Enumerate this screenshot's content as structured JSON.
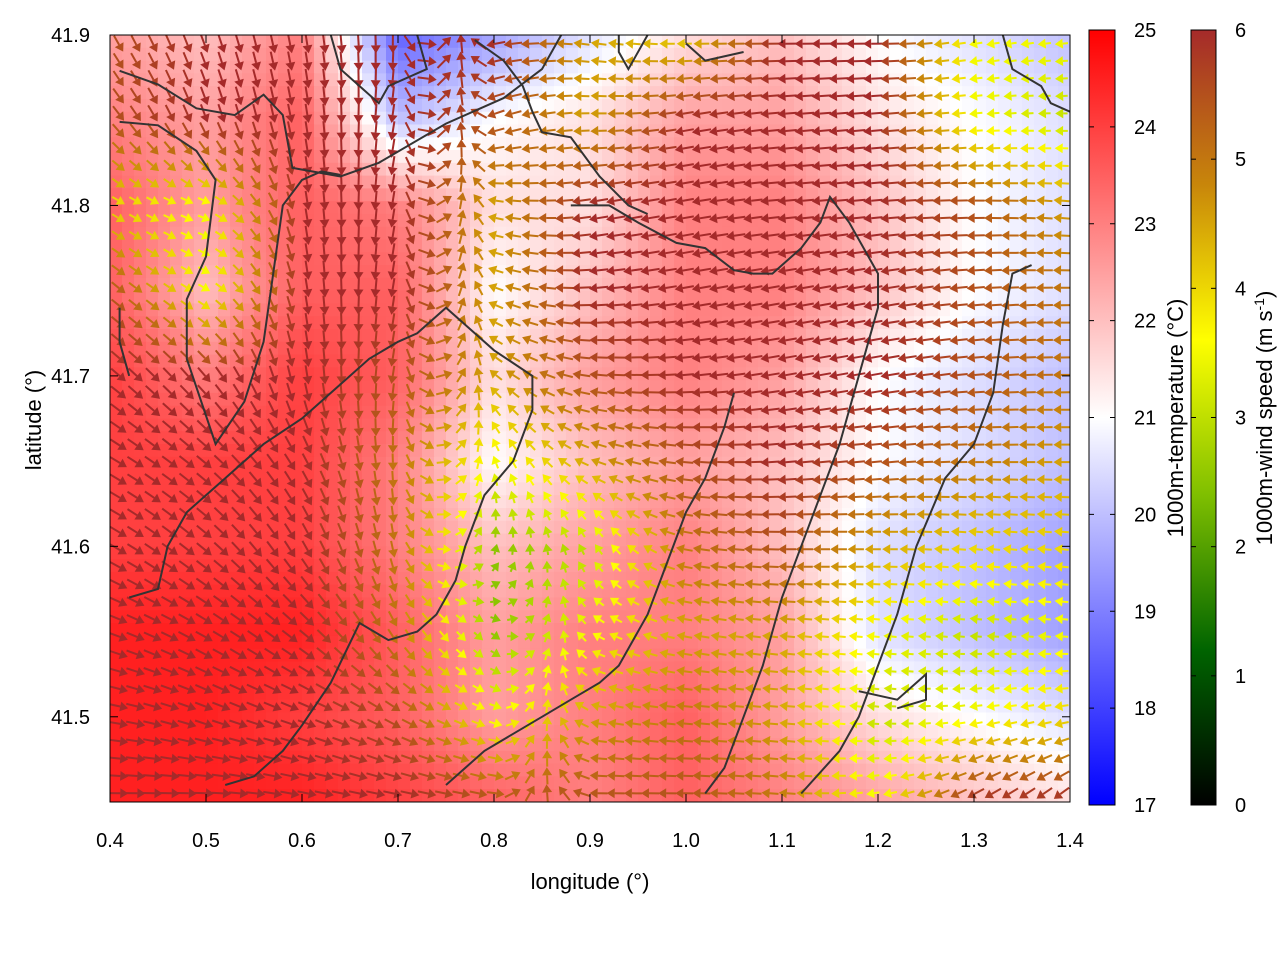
{
  "chart_data": {
    "type": "heatmap",
    "title": "",
    "xlabel": "longitude (°)",
    "ylabel": "latitude (°)",
    "xlim": [
      0.4,
      1.4
    ],
    "ylim": [
      41.45,
      41.9
    ],
    "xticks": [
      0.4,
      0.5,
      0.6,
      0.7,
      0.8,
      0.9,
      1.0,
      1.1,
      1.2,
      1.3,
      1.4
    ],
    "xtick_labels": [
      "0.4",
      "0.5",
      "0.6",
      "0.7",
      "0.8",
      "0.9",
      "1.0",
      "1.1",
      "1.2",
      "1.3",
      "1.4"
    ],
    "yticks": [
      41.5,
      41.6,
      41.7,
      41.8,
      41.9
    ],
    "ytick_labels": [
      "41.5",
      "41.6",
      "41.7",
      "41.8",
      "41.9"
    ],
    "colorbars": [
      {
        "label": "1000m-temperature (°C)",
        "range": [
          17,
          25
        ],
        "ticks": [
          17,
          18,
          19,
          20,
          21,
          22,
          23,
          24,
          25
        ],
        "tick_labels": [
          "17",
          "18",
          "19",
          "20",
          "21",
          "22",
          "23",
          "24",
          "25"
        ],
        "colors": [
          "#0000ff",
          "#ffffff",
          "#ff0000"
        ]
      },
      {
        "label_main": "1000m-wind speed (m s",
        "label_sup": "-1",
        "label_end": ")",
        "range": [
          0,
          6
        ],
        "ticks": [
          0,
          1,
          2,
          3,
          4,
          5,
          6
        ],
        "tick_labels": [
          "0",
          "1",
          "2",
          "3",
          "4",
          "5",
          "6"
        ],
        "colors": [
          "#000000",
          "#006400",
          "#7fbf00",
          "#ffff00",
          "#c8860a",
          "#a52a2a"
        ]
      }
    ],
    "temperature_field": {
      "description": "gridded 1000m temperature, lon 0.4-1.4 x lat 41.45-41.9",
      "lon": [
        0.4,
        0.5,
        0.6,
        0.7,
        0.8,
        0.9,
        1.0,
        1.1,
        1.2,
        1.3,
        1.4
      ],
      "lat": [
        41.9,
        41.85,
        41.8,
        41.75,
        41.7,
        41.65,
        41.6,
        41.55,
        41.5,
        41.45
      ],
      "values": [
        [
          22.5,
          22.0,
          23.0,
          18.5,
          19.5,
          20.5,
          21.5,
          22.0,
          21.0,
          20.5,
          20.0
        ],
        [
          23.0,
          22.5,
          23.5,
          20.0,
          21.0,
          21.5,
          22.5,
          22.5,
          21.5,
          21.0,
          20.5
        ],
        [
          23.5,
          22.5,
          23.5,
          23.0,
          21.5,
          21.5,
          23.0,
          23.0,
          22.0,
          21.0,
          20.5
        ],
        [
          23.5,
          22.0,
          23.5,
          23.5,
          21.0,
          22.0,
          23.0,
          23.0,
          22.0,
          21.0,
          20.5
        ],
        [
          24.0,
          23.0,
          24.0,
          23.5,
          21.5,
          22.5,
          23.0,
          22.5,
          21.0,
          20.5,
          20.0
        ],
        [
          24.0,
          24.0,
          24.0,
          23.0,
          21.0,
          22.0,
          22.5,
          22.0,
          21.0,
          20.5,
          20.0
        ],
        [
          24.0,
          24.0,
          24.0,
          23.0,
          22.0,
          22.5,
          23.0,
          22.0,
          20.5,
          20.0,
          19.5
        ],
        [
          24.5,
          24.5,
          24.5,
          23.5,
          22.5,
          23.0,
          23.0,
          22.5,
          20.5,
          20.0,
          19.5
        ],
        [
          24.5,
          24.5,
          24.0,
          23.5,
          22.5,
          23.0,
          23.5,
          22.5,
          21.5,
          21.0,
          20.5
        ],
        [
          24.5,
          24.5,
          24.5,
          24.0,
          23.5,
          23.0,
          23.5,
          23.0,
          22.5,
          22.0,
          21.5
        ]
      ]
    },
    "wind_field": {
      "description": "1000m wind vectors; speed in m s-1, direction in degrees (math, 0=east)",
      "lon": [
        0.4,
        0.5,
        0.6,
        0.7,
        0.8,
        0.9,
        1.0,
        1.1,
        1.2,
        1.3,
        1.4
      ],
      "lat": [
        41.9,
        41.85,
        41.8,
        41.75,
        41.7,
        41.65,
        41.6,
        41.55,
        41.5,
        41.45
      ],
      "speed": [
        [
          5.5,
          6.0,
          6.0,
          6.0,
          6.0,
          4.5,
          4.0,
          6.0,
          6.0,
          3.5,
          3.5
        ],
        [
          5.5,
          6.0,
          6.0,
          6.0,
          5.5,
          4.5,
          6.0,
          6.0,
          6.0,
          3.5,
          3.0
        ],
        [
          4.0,
          3.5,
          6.0,
          6.0,
          4.5,
          6.0,
          6.0,
          6.0,
          6.0,
          5.5,
          4.5
        ],
        [
          5.5,
          3.5,
          6.0,
          6.0,
          4.5,
          6.0,
          6.0,
          6.0,
          6.0,
          5.5,
          5.0
        ],
        [
          6.0,
          6.0,
          6.0,
          5.5,
          4.5,
          5.5,
          6.0,
          6.0,
          6.0,
          5.5,
          5.0
        ],
        [
          6.0,
          6.0,
          6.0,
          5.0,
          3.5,
          4.5,
          5.5,
          6.0,
          5.5,
          5.0,
          4.5
        ],
        [
          6.0,
          6.0,
          6.0,
          5.0,
          2.5,
          3.0,
          5.0,
          5.5,
          4.5,
          4.0,
          4.0
        ],
        [
          6.0,
          6.0,
          6.0,
          5.0,
          2.5,
          3.5,
          4.5,
          4.5,
          3.5,
          3.0,
          3.5
        ],
        [
          6.0,
          6.0,
          6.0,
          5.5,
          3.5,
          4.5,
          5.0,
          4.5,
          3.0,
          3.5,
          4.0
        ],
        [
          6.0,
          6.0,
          6.0,
          6.0,
          5.5,
          5.5,
          5.5,
          5.0,
          3.5,
          6.0,
          6.0
        ]
      ],
      "direction_deg": [
        [
          -60,
          -70,
          -80,
          -90,
          190,
          170,
          180,
          180,
          180,
          190,
          185
        ],
        [
          -50,
          -70,
          -80,
          -100,
          200,
          180,
          190,
          185,
          185,
          185,
          180
        ],
        [
          -30,
          -20,
          -80,
          -100,
          170,
          190,
          190,
          185,
          185,
          180,
          175
        ],
        [
          -40,
          -30,
          -80,
          -100,
          160,
          185,
          190,
          190,
          190,
          185,
          180
        ],
        [
          -40,
          -50,
          -80,
          -100,
          140,
          175,
          185,
          190,
          190,
          185,
          180
        ],
        [
          -30,
          -40,
          -60,
          -90,
          110,
          160,
          175,
          185,
          185,
          180,
          180
        ],
        [
          -30,
          -40,
          -60,
          -80,
          80,
          120,
          170,
          180,
          180,
          175,
          175
        ],
        [
          -20,
          -30,
          -40,
          -60,
          -40,
          150,
          170,
          175,
          175,
          175,
          175
        ],
        [
          -10,
          -20,
          -20,
          -30,
          -20,
          170,
          175,
          175,
          175,
          190,
          190
        ],
        [
          0,
          0,
          -10,
          -10,
          -10,
          180,
          180,
          175,
          190,
          210,
          220
        ]
      ]
    },
    "contours": {
      "description": "dark grey contour lines, lon/lat vertices",
      "color": "#333333",
      "lines": [
        [
          [
            0.41,
            41.879
          ],
          [
            0.45,
            41.871
          ],
          [
            0.49,
            41.857
          ],
          [
            0.53,
            41.853
          ],
          [
            0.56,
            41.865
          ],
          [
            0.58,
            41.853
          ],
          [
            0.59,
            41.822
          ],
          [
            0.64,
            41.817
          ],
          [
            0.68,
            41.825
          ],
          [
            0.75,
            41.848
          ],
          [
            0.81,
            41.863
          ],
          [
            0.85,
            41.88
          ],
          [
            0.87,
            41.9
          ]
        ],
        [
          [
            0.41,
            41.849
          ],
          [
            0.45,
            41.847
          ],
          [
            0.49,
            41.832
          ],
          [
            0.51,
            41.815
          ],
          [
            0.5,
            41.77
          ],
          [
            0.48,
            41.745
          ],
          [
            0.48,
            41.71
          ],
          [
            0.51,
            41.66
          ],
          [
            0.54,
            41.685
          ],
          [
            0.56,
            41.72
          ],
          [
            0.57,
            41.76
          ],
          [
            0.58,
            41.8
          ],
          [
            0.6,
            41.815
          ],
          [
            0.62,
            41.82
          ],
          [
            0.64,
            41.818
          ]
        ],
        [
          [
            0.41,
            41.74
          ],
          [
            0.41,
            41.72
          ],
          [
            0.42,
            41.7
          ]
        ],
        [
          [
            0.72,
            41.9
          ],
          [
            0.73,
            41.88
          ],
          [
            0.69,
            41.87
          ],
          [
            0.68,
            41.86
          ],
          [
            0.66,
            41.87
          ],
          [
            0.64,
            41.88
          ],
          [
            0.63,
            41.9
          ]
        ],
        [
          [
            0.78,
            41.897
          ],
          [
            0.81,
            41.885
          ],
          [
            0.83,
            41.87
          ],
          [
            0.84,
            41.855
          ],
          [
            0.85,
            41.843
          ],
          [
            0.88,
            41.84
          ],
          [
            0.91,
            41.817
          ],
          [
            0.94,
            41.8
          ],
          [
            0.96,
            41.795
          ]
        ],
        [
          [
            0.93,
            41.9
          ],
          [
            0.93,
            41.89
          ],
          [
            0.94,
            41.88
          ],
          [
            0.96,
            41.9
          ]
        ],
        [
          [
            1.0,
            41.895
          ],
          [
            1.02,
            41.885
          ],
          [
            1.06,
            41.89
          ]
        ],
        [
          [
            1.33,
            41.9
          ],
          [
            1.34,
            41.88
          ],
          [
            1.37,
            41.87
          ],
          [
            1.38,
            41.86
          ],
          [
            1.4,
            41.855
          ]
        ],
        [
          [
            0.88,
            41.8
          ],
          [
            0.92,
            41.8
          ],
          [
            0.95,
            41.79
          ],
          [
            0.99,
            41.778
          ],
          [
            1.02,
            41.775
          ],
          [
            1.05,
            41.762
          ],
          [
            1.07,
            41.76
          ],
          [
            1.09,
            41.76
          ],
          [
            1.12,
            41.775
          ],
          [
            1.14,
            41.79
          ],
          [
            1.15,
            41.805
          ],
          [
            1.17,
            41.79
          ],
          [
            1.2,
            41.76
          ],
          [
            1.2,
            41.74
          ],
          [
            1.19,
            41.72
          ],
          [
            1.18,
            41.7
          ],
          [
            1.16,
            41.66
          ],
          [
            1.14,
            41.63
          ],
          [
            1.12,
            41.6
          ],
          [
            1.1,
            41.57
          ],
          [
            1.08,
            41.53
          ],
          [
            1.06,
            41.5
          ],
          [
            1.04,
            41.47
          ],
          [
            1.02,
            41.455
          ]
        ],
        [
          [
            0.42,
            41.57
          ],
          [
            0.45,
            41.575
          ],
          [
            0.46,
            41.6
          ],
          [
            0.48,
            41.62
          ],
          [
            0.52,
            41.64
          ],
          [
            0.56,
            41.66
          ],
          [
            0.6,
            41.675
          ],
          [
            0.64,
            41.695
          ],
          [
            0.67,
            41.71
          ],
          [
            0.7,
            41.72
          ],
          [
            0.72,
            41.725
          ],
          [
            0.75,
            41.74
          ],
          [
            0.77,
            41.73
          ],
          [
            0.8,
            41.715
          ],
          [
            0.84,
            41.7
          ],
          [
            0.84,
            41.68
          ],
          [
            0.82,
            41.65
          ],
          [
            0.79,
            41.63
          ],
          [
            0.77,
            41.6
          ],
          [
            0.76,
            41.58
          ],
          [
            0.74,
            41.56
          ],
          [
            0.72,
            41.55
          ],
          [
            0.69,
            41.545
          ],
          [
            0.66,
            41.555
          ],
          [
            0.63,
            41.52
          ],
          [
            0.6,
            41.495
          ],
          [
            0.58,
            41.48
          ],
          [
            0.55,
            41.465
          ],
          [
            0.52,
            41.46
          ]
        ],
        [
          [
            0.75,
            41.46
          ],
          [
            0.79,
            41.48
          ],
          [
            0.82,
            41.49
          ],
          [
            0.85,
            41.5
          ],
          [
            0.88,
            41.51
          ],
          [
            0.91,
            41.52
          ],
          [
            0.93,
            41.53
          ],
          [
            0.96,
            41.56
          ],
          [
            0.98,
            41.59
          ],
          [
            1.0,
            41.62
          ],
          [
            1.02,
            41.64
          ],
          [
            1.04,
            41.67
          ],
          [
            1.05,
            41.69
          ]
        ],
        [
          [
            1.12,
            41.455
          ],
          [
            1.16,
            41.48
          ],
          [
            1.18,
            41.5
          ],
          [
            1.2,
            41.53
          ],
          [
            1.22,
            41.56
          ],
          [
            1.24,
            41.6
          ],
          [
            1.27,
            41.64
          ],
          [
            1.3,
            41.66
          ],
          [
            1.32,
            41.69
          ],
          [
            1.33,
            41.73
          ],
          [
            1.34,
            41.76
          ],
          [
            1.36,
            41.765
          ]
        ],
        [
          [
            1.18,
            41.515
          ],
          [
            1.22,
            41.51
          ],
          [
            1.25,
            41.525
          ],
          [
            1.25,
            41.51
          ],
          [
            1.22,
            41.505
          ]
        ]
      ]
    }
  }
}
